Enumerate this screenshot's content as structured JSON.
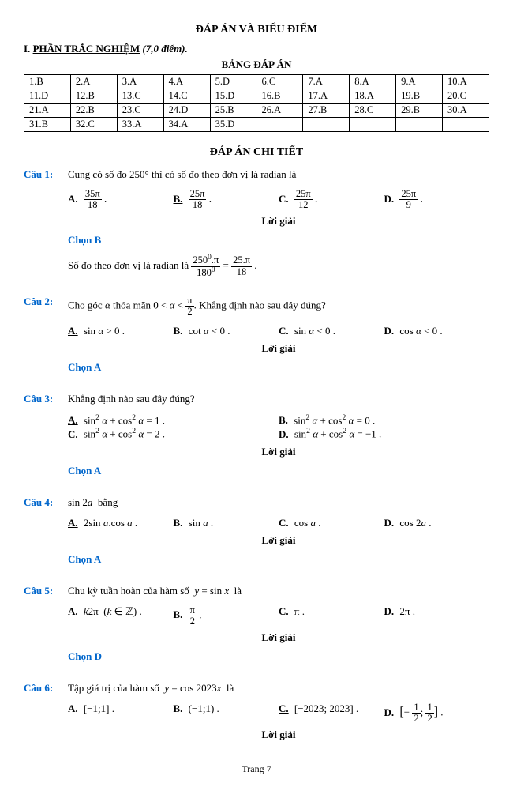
{
  "title": "ĐÁP ÁN VÀ BIỂU ĐIỂM",
  "section": {
    "label": "I.",
    "name": "PHẦN TRẮC NGHIỆM",
    "score": "(7,0 điểm)."
  },
  "table_title": "BẢNG ĐÁP ÁN",
  "answer_table": [
    [
      "1.B",
      "2.A",
      "3.A",
      "4.A",
      "5.D",
      "6.C",
      "7.A",
      "8.A",
      "9.A",
      "10.A"
    ],
    [
      "11.D",
      "12.B",
      "13.C",
      "14.C",
      "15.D",
      "16.B",
      "17.A",
      "18.A",
      "19.B",
      "20.C"
    ],
    [
      "21.A",
      "22.B",
      "23.C",
      "24.D",
      "25.B",
      "26.A",
      "27.B",
      "28.C",
      "29.B",
      "30.A"
    ],
    [
      "31.B",
      "32.C",
      "33.A",
      "34.A",
      "35.D",
      "",
      "",
      "",
      "",
      ""
    ]
  ],
  "detail_title": "ĐÁP ÁN CHI TIẾT",
  "questions": [
    {
      "label": "Câu 1:",
      "text": "Cung có số đo 250° thì có số đo theo đơn vị là radian là",
      "options": [
        {
          "letter": "A.",
          "html": "<span class='frac'><span class='num'>35π</span><span class='den'>18</span></span> .",
          "correct": false
        },
        {
          "letter": "B.",
          "html": "<span class='frac'><span class='num'>25π</span><span class='den'>18</span></span> .",
          "correct": true
        },
        {
          "letter": "C.",
          "html": "<span class='frac'><span class='num'>25π</span><span class='den'>12</span></span> .",
          "correct": false
        },
        {
          "letter": "D.",
          "html": "<span class='frac'><span class='num'>25π</span><span class='den'>9</span></span> .",
          "correct": false
        }
      ],
      "cols": 4,
      "chon": "Chọn B",
      "expl": "Số đo theo đơn vị là radian là <span class='frac'><span class='num'>250<sup>0</sup>.π</span><span class='den'>180<sup>0</sup></span></span> = <span class='frac'><span class='num'>25.π</span><span class='den'>18</span></span> ."
    },
    {
      "label": "Câu 2:",
      "text": "Cho góc <i>α</i> thỏa mãn 0 &lt; <i>α</i> &lt; <span class='frac'><span class='num'>π</span><span class='den'>2</span></span>. Khẳng định nào sau đây đúng?",
      "options": [
        {
          "letter": "A.",
          "html": "sin <i>α</i> &gt; 0 .",
          "correct": true
        },
        {
          "letter": "B.",
          "html": "cot <i>α</i> &lt; 0 .",
          "correct": false
        },
        {
          "letter": "C.",
          "html": "sin <i>α</i> &lt; 0 .",
          "correct": false
        },
        {
          "letter": "D.",
          "html": "cos <i>α</i> &lt; 0 .",
          "correct": false
        }
      ],
      "cols": 4,
      "chon": "Chọn A"
    },
    {
      "label": "Câu 3:",
      "text": "Khẳng định nào sau đây đúng?",
      "options": [
        {
          "letter": "A.",
          "html": "sin<sup>2</sup> <i>α</i> + cos<sup>2</sup> <i>α</i> = 1 .",
          "correct": true
        },
        {
          "letter": "B.",
          "html": "sin<sup>2</sup> <i>α</i> + cos<sup>2</sup> <i>α</i> = 0 .",
          "correct": false
        },
        {
          "letter": "C.",
          "html": "sin<sup>2</sup> <i>α</i> + cos<sup>2</sup> <i>α</i> = 2 .",
          "correct": false
        },
        {
          "letter": "D.",
          "html": "sin<sup>2</sup> <i>α</i> + cos<sup>2</sup> <i>α</i> = −1 .",
          "correct": false
        }
      ],
      "cols": 2,
      "chon": "Chọn A"
    },
    {
      "label": "Câu 4:",
      "text": "sin 2<i>a</i>&nbsp; bằng",
      "options": [
        {
          "letter": "A.",
          "html": "2sin <i>a</i>.cos <i>a</i> .",
          "correct": true
        },
        {
          "letter": "B.",
          "html": "sin <i>a</i> .",
          "correct": false
        },
        {
          "letter": "C.",
          "html": "cos <i>a</i> .",
          "correct": false
        },
        {
          "letter": "D.",
          "html": "cos 2<i>a</i> .",
          "correct": false
        }
      ],
      "cols": 4,
      "chon": "Chọn A"
    },
    {
      "label": "Câu 5:",
      "text": "Chu kỳ tuần hoàn của hàm số&nbsp; <i>y</i> = sin <i>x</i> &nbsp;là",
      "options": [
        {
          "letter": "A.",
          "html": "<i>k</i>2π &nbsp;(<i>k</i> ∈ ℤ) .",
          "correct": false
        },
        {
          "letter": "B.",
          "html": "<span class='frac'><span class='num'>π</span><span class='den'>2</span></span> .",
          "correct": false
        },
        {
          "letter": "C.",
          "html": "π .",
          "correct": false
        },
        {
          "letter": "D.",
          "html": "2π .",
          "correct": true
        }
      ],
      "cols": 4,
      "chon": "Chọn D"
    },
    {
      "label": "Câu 6:",
      "text": "Tập giá trị của hàm số&nbsp; <i>y</i> = cos 2023<i>x</i> &nbsp;là",
      "options": [
        {
          "letter": "A.",
          "html": "[−1;1] .",
          "correct": false
        },
        {
          "letter": "B.",
          "html": "(−1;1) .",
          "correct": false
        },
        {
          "letter": "C.",
          "html": "[−2023; 2023] .",
          "correct": true
        },
        {
          "letter": "D.",
          "html": "<span style='font-size:16px'>[</span>− <span class='frac'><span class='num'>1</span><span class='den'>2</span></span>; <span class='frac'><span class='num'>1</span><span class='den'>2</span></span><span style='font-size:16px'>]</span> .",
          "correct": false
        }
      ],
      "cols": 4
    }
  ],
  "loi_giai": "Lời giải",
  "footer": "Trang 7",
  "colors": {
    "blue": "#0066cc"
  }
}
